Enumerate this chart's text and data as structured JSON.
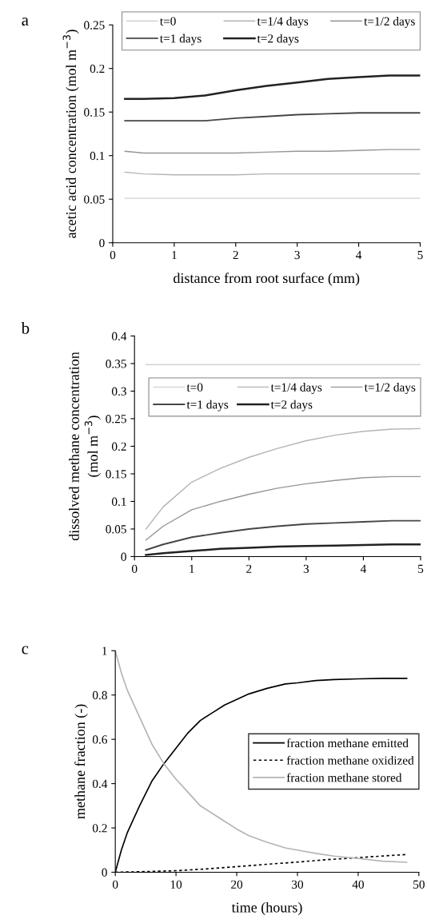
{
  "chart_data": [
    {
      "type": "line",
      "xlabel": "distance from root surface (mm)",
      "ylabel": "acetic acid concentration (mol m$^{−3}$)",
      "annotations": [
        "a"
      ],
      "x": [
        0.2,
        0.5,
        1,
        1.5,
        2,
        2.5,
        3,
        3.5,
        4,
        4.5,
        5
      ],
      "xlim": [
        0,
        5
      ],
      "xticks": [
        0,
        1,
        2,
        3,
        4,
        5
      ],
      "ylim": [
        0,
        0.25
      ],
      "yticks": [
        0,
        0.05,
        0.1,
        0.15,
        0.2,
        0.25
      ],
      "legend": "top",
      "grid": false,
      "series": [
        {
          "name": "t=0",
          "color": "#d2d2d2",
          "values": [
            0.051,
            0.051,
            0.051,
            0.051,
            0.051,
            0.051,
            0.051,
            0.051,
            0.051,
            0.051,
            0.051
          ]
        },
        {
          "name": "t=1/4 days",
          "color": "#b4b4b4",
          "values": [
            0.081,
            0.079,
            0.078,
            0.078,
            0.078,
            0.079,
            0.079,
            0.079,
            0.079,
            0.079,
            0.079
          ]
        },
        {
          "name": "t=1/2 days",
          "color": "#969696",
          "values": [
            0.105,
            0.103,
            0.103,
            0.103,
            0.103,
            0.104,
            0.105,
            0.105,
            0.106,
            0.107,
            0.107
          ]
        },
        {
          "name": "t=1 days",
          "color": "#464646",
          "values": [
            0.14,
            0.14,
            0.14,
            0.14,
            0.143,
            0.145,
            0.147,
            0.148,
            0.149,
            0.149,
            0.149
          ]
        },
        {
          "name": "t=2 days",
          "color": "#222222",
          "values": [
            0.165,
            0.165,
            0.166,
            0.169,
            0.175,
            0.18,
            0.184,
            0.188,
            0.19,
            0.192,
            0.192
          ]
        }
      ]
    },
    {
      "type": "line",
      "ylabel": "dissolved methane concentration\n(mol m$^{−3}$)",
      "annotations": [
        "b"
      ],
      "x": [
        0.2,
        0.5,
        1,
        1.5,
        2,
        2.5,
        3,
        3.5,
        4,
        4.5,
        5
      ],
      "xlim": [
        0,
        5
      ],
      "xticks": [
        0,
        1,
        2,
        3,
        4,
        5
      ],
      "ylim": [
        0,
        0.4
      ],
      "yticks": [
        0,
        0.05,
        0.1,
        0.15,
        0.2,
        0.25,
        0.3,
        0.35,
        0.4
      ],
      "legend": "top right",
      "grid": false,
      "series": [
        {
          "name": "t=0",
          "color": "#d2d2d2",
          "values": [
            0.348,
            0.348,
            0.348,
            0.348,
            0.348,
            0.348,
            0.348,
            0.348,
            0.348,
            0.348,
            0.348
          ]
        },
        {
          "name": "t=1/4 days",
          "color": "#b4b4b4",
          "values": [
            0.05,
            0.09,
            0.135,
            0.16,
            0.18,
            0.196,
            0.21,
            0.22,
            0.227,
            0.231,
            0.232
          ]
        },
        {
          "name": "t=1/2 days",
          "color": "#969696",
          "values": [
            0.03,
            0.055,
            0.085,
            0.1,
            0.113,
            0.124,
            0.132,
            0.138,
            0.143,
            0.145,
            0.145
          ]
        },
        {
          "name": "t=1 days",
          "color": "#464646",
          "values": [
            0.012,
            0.022,
            0.035,
            0.043,
            0.05,
            0.055,
            0.059,
            0.061,
            0.063,
            0.065,
            0.065
          ]
        },
        {
          "name": "t=2 days",
          "color": "#222222",
          "values": [
            0.003,
            0.006,
            0.01,
            0.014,
            0.016,
            0.018,
            0.019,
            0.02,
            0.021,
            0.022,
            0.022
          ]
        }
      ]
    },
    {
      "type": "line",
      "xlabel": "time (hours)",
      "ylabel": "methane fraction (-)",
      "annotations": [
        "c"
      ],
      "xlim": [
        0,
        50
      ],
      "xticks": [
        0,
        10,
        20,
        30,
        40,
        50
      ],
      "ylim": [
        0,
        1
      ],
      "yticks": [
        0,
        0.2,
        0.4,
        0.6,
        0.8,
        1
      ],
      "legend": "right",
      "grid": false,
      "series": [
        {
          "name": "fraction methane emitted",
          "color": "#000000",
          "line_style": "solid",
          "x": [
            0,
            1,
            2,
            4,
            6,
            8,
            10,
            12,
            14,
            16,
            18,
            20,
            22,
            25,
            28,
            30,
            33,
            36,
            40,
            44,
            48
          ],
          "values": [
            0,
            0.1,
            0.18,
            0.3,
            0.41,
            0.49,
            0.56,
            0.63,
            0.685,
            0.72,
            0.755,
            0.78,
            0.805,
            0.83,
            0.85,
            0.855,
            0.865,
            0.87,
            0.873,
            0.875,
            0.875
          ]
        },
        {
          "name": "fraction methane oxidized",
          "color": "#000000",
          "line_style": "dotted",
          "x": [
            0,
            5,
            10,
            15,
            20,
            25,
            30,
            35,
            40,
            45,
            48
          ],
          "values": [
            0,
            0.003,
            0.007,
            0.015,
            0.025,
            0.036,
            0.046,
            0.057,
            0.066,
            0.075,
            0.08
          ]
        },
        {
          "name": "fraction methane stored",
          "color": "#b4b4b4",
          "line_style": "solid",
          "x": [
            0,
            1,
            2,
            4,
            6,
            8,
            10,
            12,
            14,
            16,
            18,
            20,
            22,
            25,
            28,
            30,
            33,
            36,
            40,
            44,
            48
          ],
          "values": [
            1,
            0.9,
            0.82,
            0.7,
            0.58,
            0.49,
            0.42,
            0.36,
            0.3,
            0.265,
            0.23,
            0.195,
            0.165,
            0.135,
            0.11,
            0.1,
            0.085,
            0.073,
            0.062,
            0.05,
            0.045
          ]
        }
      ]
    }
  ]
}
